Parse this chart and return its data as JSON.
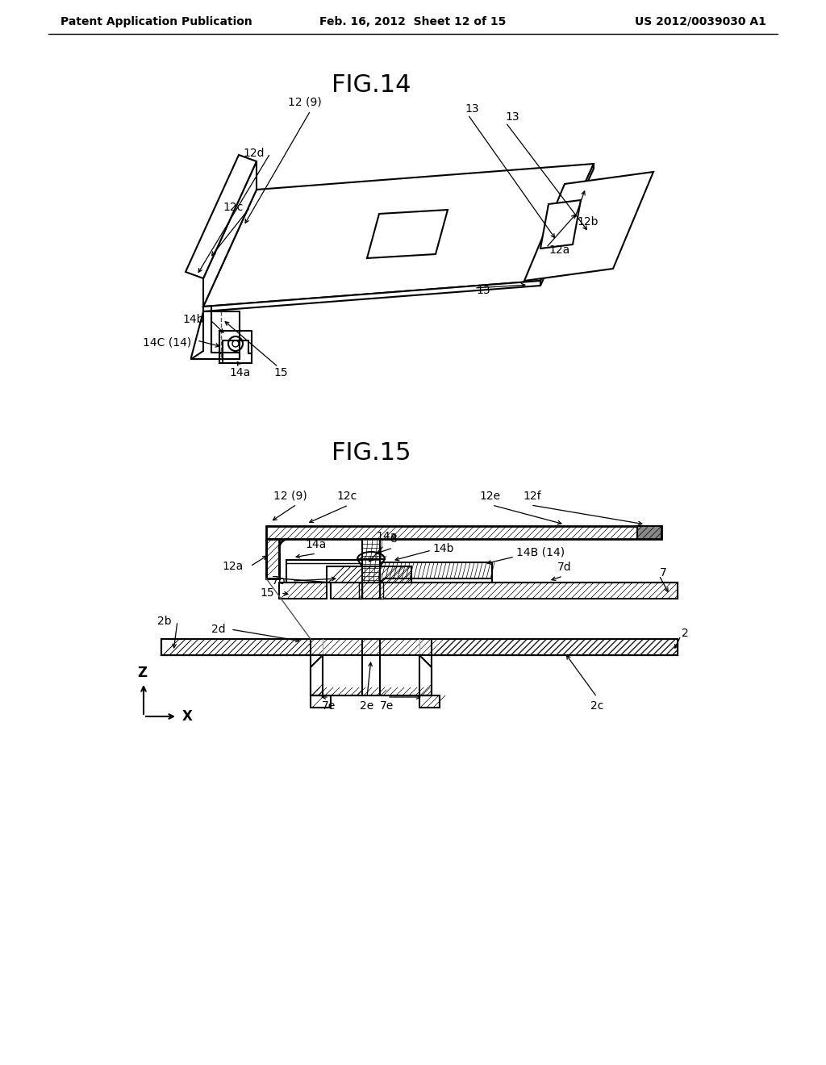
{
  "header_left": "Patent Application Publication",
  "header_mid": "Feb. 16, 2012  Sheet 12 of 15",
  "header_right": "US 2012/0039030 A1",
  "fig14_title": "FIG.14",
  "fig15_title": "FIG.15",
  "bg_color": "#ffffff",
  "line_color": "#000000",
  "header_fontsize": 10,
  "title_fontsize": 22,
  "label_fontsize": 10
}
